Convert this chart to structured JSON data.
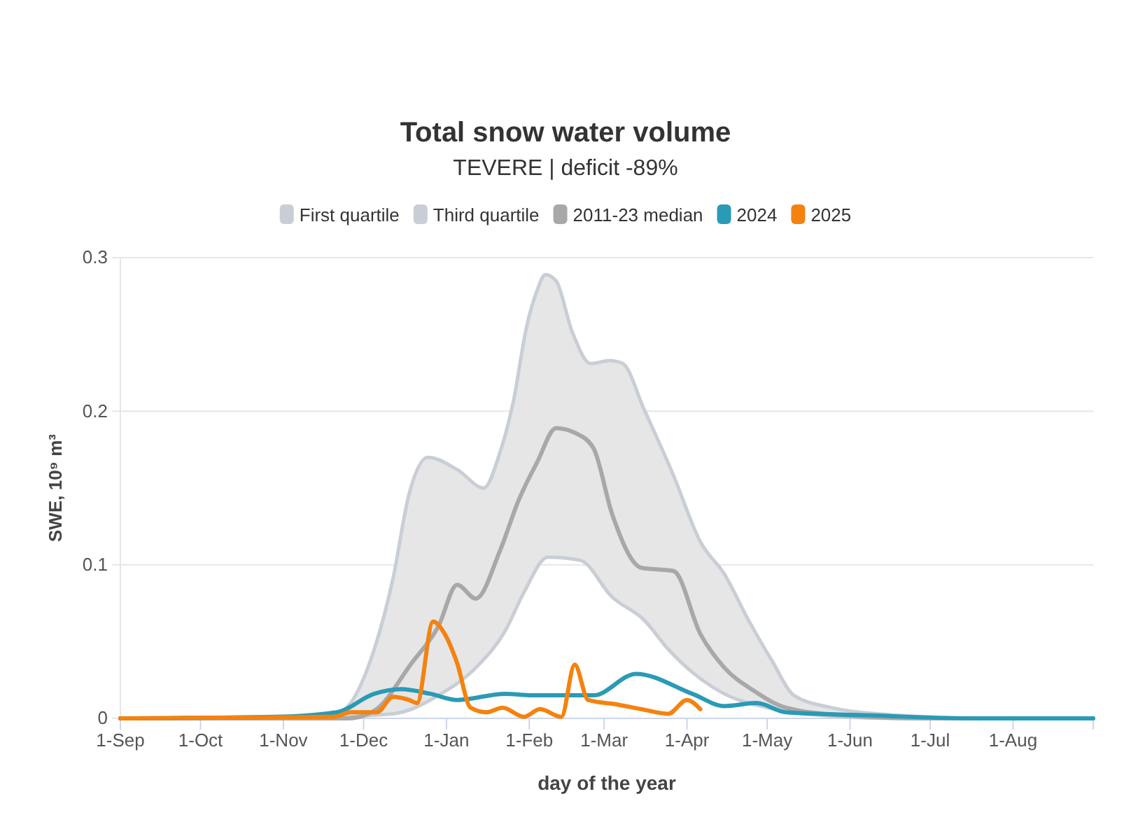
{
  "chart_data": {
    "type": "line",
    "title": "Total snow water volume",
    "subtitle": "TEVERE | deficit -89%",
    "xlabel": "day of the year",
    "ylabel": "SWE, 10⁹ m³",
    "xlim": [
      "2024-09-01",
      "2025-08-31"
    ],
    "ylim": [
      0,
      0.3
    ],
    "xticks": [
      {
        "value": "2024-09-01",
        "label": "1-Sep"
      },
      {
        "value": "2024-10-01",
        "label": "1-Oct"
      },
      {
        "value": "2024-11-01",
        "label": "1-Nov"
      },
      {
        "value": "2024-12-01",
        "label": "1-Dec"
      },
      {
        "value": "2025-01-01",
        "label": "1-Jan"
      },
      {
        "value": "2025-02-01",
        "label": "1-Feb"
      },
      {
        "value": "2025-03-01",
        "label": "1-Mar"
      },
      {
        "value": "2025-04-01",
        "label": "1-Apr"
      },
      {
        "value": "2025-05-01",
        "label": "1-May"
      },
      {
        "value": "2025-06-01",
        "label": "1-Jun"
      },
      {
        "value": "2025-07-01",
        "label": "1-Jul"
      },
      {
        "value": "2025-08-01",
        "label": "1-Aug"
      }
    ],
    "yticks": [
      0,
      0.1,
      0.2,
      0.3
    ],
    "grid": "y",
    "legend": "top",
    "line_style": "solid",
    "marker": "none",
    "series": [
      {
        "name": "First quartile",
        "color": "#c9ced6",
        "x": [
          "2024-09-01",
          "2024-10-31",
          "2024-12-12",
          "2024-12-29",
          "2025-01-12",
          "2025-01-23",
          "2025-01-30",
          "2025-02-08",
          "2025-02-20",
          "2025-03-04",
          "2025-03-16",
          "2025-03-25",
          "2025-04-03",
          "2025-04-15",
          "2025-05-01",
          "2025-05-15",
          "2025-06-18",
          "2025-08-31"
        ],
        "values": [
          0,
          0,
          0.003,
          0.015,
          0.033,
          0.057,
          0.082,
          0.105,
          0.103,
          0.079,
          0.064,
          0.045,
          0.03,
          0.016,
          0.007,
          0.003,
          0,
          0
        ]
      },
      {
        "name": "Third quartile",
        "type": "area",
        "color": "#c9ced6",
        "x": [
          "2024-09-01",
          "2024-10-31",
          "2024-11-21",
          "2024-12-05",
          "2024-12-12",
          "2024-12-18",
          "2024-12-25",
          "2025-01-05",
          "2025-01-15",
          "2025-01-21",
          "2025-01-26",
          "2025-01-31",
          "2025-02-04",
          "2025-02-07",
          "2025-02-11",
          "2025-02-17",
          "2025-02-24",
          "2025-03-03",
          "2025-03-08",
          "2025-03-16",
          "2025-03-27",
          "2025-04-06",
          "2025-04-15",
          "2025-04-24",
          "2025-05-03",
          "2025-05-11",
          "2025-05-25",
          "2025-06-19",
          "2025-07-20",
          "2025-08-31"
        ],
        "values": [
          0,
          0,
          0.003,
          0.045,
          0.091,
          0.146,
          0.17,
          0.162,
          0.15,
          0.173,
          0.206,
          0.255,
          0.279,
          0.289,
          0.285,
          0.252,
          0.231,
          0.233,
          0.231,
          0.201,
          0.158,
          0.115,
          0.094,
          0.064,
          0.037,
          0.015,
          0.007,
          0.002,
          0,
          0
        ]
      },
      {
        "name": "2011-23 median",
        "color": "#a8a8a8",
        "x": [
          "2024-09-01",
          "2024-11-25",
          "2024-12-05",
          "2024-12-19",
          "2024-12-29",
          "2025-01-05",
          "2025-01-12",
          "2025-01-21",
          "2025-01-28",
          "2025-02-04",
          "2025-02-11",
          "2025-02-18",
          "2025-02-25",
          "2025-03-04",
          "2025-03-15",
          "2025-03-27",
          "2025-04-06",
          "2025-04-15",
          "2025-04-26",
          "2025-05-08",
          "2025-05-29",
          "2025-06-28",
          "2025-08-31"
        ],
        "values": [
          0,
          0,
          0.005,
          0.036,
          0.06,
          0.087,
          0.078,
          0.109,
          0.142,
          0.167,
          0.189,
          0.186,
          0.176,
          0.133,
          0.098,
          0.096,
          0.055,
          0.033,
          0.018,
          0.007,
          0.002,
          0,
          0
        ]
      },
      {
        "name": "2024",
        "color": "#2a9ab5",
        "x": [
          "2024-09-01",
          "2024-10-29",
          "2024-11-21",
          "2024-12-05",
          "2024-12-15",
          "2024-12-26",
          "2025-01-05",
          "2025-01-23",
          "2025-02-02",
          "2025-02-25",
          "2025-03-13",
          "2025-04-03",
          "2025-04-15",
          "2025-04-27",
          "2025-05-08",
          "2025-06-08",
          "2025-07-18",
          "2025-08-31"
        ],
        "values": [
          0,
          0.001,
          0.004,
          0.016,
          0.019,
          0.016,
          0.012,
          0.016,
          0.015,
          0.015,
          0.029,
          0.016,
          0.008,
          0.01,
          0.004,
          0.002,
          0,
          0
        ]
      },
      {
        "name": "2025",
        "color": "#f5820e",
        "x": [
          "2024-09-01",
          "2024-11-20",
          "2024-11-26",
          "2024-12-06",
          "2024-12-12",
          "2024-12-18",
          "2024-12-21",
          "2024-12-27",
          "2024-12-31",
          "2025-01-05",
          "2025-01-10",
          "2025-01-16",
          "2025-01-22",
          "2025-01-30",
          "2025-02-05",
          "2025-02-13",
          "2025-02-18",
          "2025-02-23",
          "2025-03-06",
          "2025-03-15",
          "2025-03-25",
          "2025-04-01",
          "2025-04-06"
        ],
        "values": [
          0,
          0.001,
          0.004,
          0.004,
          0.014,
          0.012,
          0.01,
          0.063,
          0.056,
          0.036,
          0.007,
          0.004,
          0.007,
          0.001,
          0.006,
          0.001,
          0.035,
          0.012,
          0.009,
          0.006,
          0.003,
          0.012,
          0.006
        ]
      }
    ]
  }
}
